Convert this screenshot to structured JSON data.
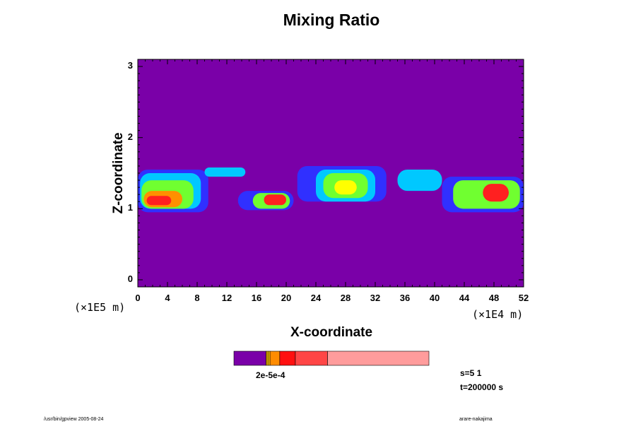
{
  "chart_data": {
    "type": "heatmap",
    "title": "Mixing Ratio",
    "xlabel": "X-coordinate",
    "ylabel": "Z-coordinate",
    "x_unit_label": "(×1E4 m)",
    "y_unit_label": "(×1E5 m)",
    "xlim": [
      0,
      52
    ],
    "ylim": [
      -0.1,
      3.1
    ],
    "x_ticks": [
      "0",
      "4",
      "8",
      "12",
      "16",
      "20",
      "24",
      "28",
      "32",
      "36",
      "40",
      "44",
      "48",
      "52"
    ],
    "y_ticks": [
      "0",
      "1",
      "2",
      "3"
    ],
    "background_color": "#7a00a8",
    "levels": [
      {
        "name": "very-low",
        "color": "#3030ff"
      },
      {
        "name": "low",
        "color": "#00c8ff"
      },
      {
        "name": "mid-low",
        "color": "#00e890"
      },
      {
        "name": "mid",
        "color": "#70ff30"
      },
      {
        "name": "mid-high",
        "color": "#ffff00"
      },
      {
        "name": "high",
        "color": "#ff9000"
      },
      {
        "name": "higher",
        "color": "#ff2020"
      },
      {
        "name": "peak",
        "color": "#ff9090"
      }
    ],
    "cells": [
      {
        "x": [
          0,
          9.5
        ],
        "z": [
          0.95,
          1.55
        ],
        "level": "very-low"
      },
      {
        "x": [
          0.3,
          8.5
        ],
        "z": [
          1.0,
          1.5
        ],
        "level": "low"
      },
      {
        "x": [
          0.5,
          7.5
        ],
        "z": [
          1.0,
          1.4
        ],
        "level": "mid"
      },
      {
        "x": [
          0.8,
          6.0
        ],
        "z": [
          1.02,
          1.25
        ],
        "level": "high"
      },
      {
        "x": [
          1.2,
          4.5
        ],
        "z": [
          1.05,
          1.18
        ],
        "level": "higher"
      },
      {
        "x": [
          9.0,
          14.5
        ],
        "z": [
          1.45,
          1.58
        ],
        "level": "low"
      },
      {
        "x": [
          13.5,
          21.0
        ],
        "z": [
          0.98,
          1.25
        ],
        "level": "very-low"
      },
      {
        "x": [
          15.5,
          20.5
        ],
        "z": [
          1.0,
          1.22
        ],
        "level": "mid"
      },
      {
        "x": [
          17.0,
          20.0
        ],
        "z": [
          1.05,
          1.2
        ],
        "level": "higher"
      },
      {
        "x": [
          21.5,
          33.5
        ],
        "z": [
          1.1,
          1.6
        ],
        "level": "very-low"
      },
      {
        "x": [
          24.0,
          32.0
        ],
        "z": [
          1.1,
          1.55
        ],
        "level": "low"
      },
      {
        "x": [
          25.0,
          31.0
        ],
        "z": [
          1.15,
          1.5
        ],
        "level": "mid"
      },
      {
        "x": [
          26.5,
          29.5
        ],
        "z": [
          1.2,
          1.4
        ],
        "level": "mid-high"
      },
      {
        "x": [
          35.0,
          41.0
        ],
        "z": [
          1.25,
          1.55
        ],
        "level": "low"
      },
      {
        "x": [
          41.0,
          52.0
        ],
        "z": [
          0.95,
          1.45
        ],
        "level": "very-low"
      },
      {
        "x": [
          42.5,
          51.5
        ],
        "z": [
          1.0,
          1.4
        ],
        "level": "mid"
      },
      {
        "x": [
          46.5,
          50.0
        ],
        "z": [
          1.1,
          1.35
        ],
        "level": "higher"
      }
    ],
    "colorbar": {
      "label": "2e-5e-4",
      "colors": [
        "#7a00a8",
        "#d4a000",
        "#ffcc00",
        "#ff8c00",
        "#ff1010",
        "#ff4646",
        "#ff9c9c"
      ],
      "fractions": [
        0.165,
        0.01,
        0.01,
        0.05,
        0.08,
        0.165,
        0.52
      ]
    }
  },
  "annotations": {
    "s": "s=5 1",
    "t": "t=200000 s",
    "footer_left": "/usr/bin/gpview 2005-08-24",
    "footer_right": "arare-nakajima"
  }
}
